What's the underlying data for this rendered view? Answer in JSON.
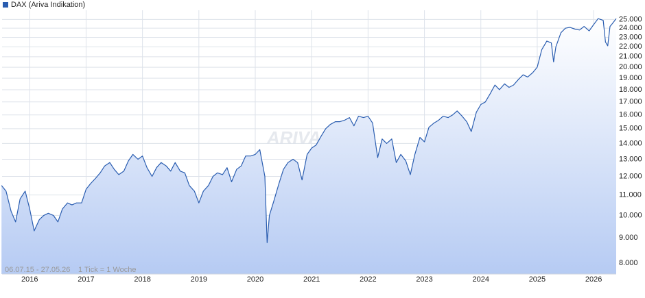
{
  "chart_data": {
    "type": "line",
    "log_scale": true,
    "grid": true,
    "watermark": "ARIVA.DE",
    "date_range": "06.07.15 - 27.05.26",
    "tick_note": "1 Tick = 1 Woche",
    "x": [
      2015.5,
      2015.58,
      2015.67,
      2015.75,
      2015.83,
      2015.92,
      2016.0,
      2016.08,
      2016.17,
      2016.25,
      2016.33,
      2016.42,
      2016.5,
      2016.58,
      2016.67,
      2016.75,
      2016.83,
      2016.92,
      2017.0,
      2017.08,
      2017.17,
      2017.25,
      2017.33,
      2017.42,
      2017.5,
      2017.58,
      2017.67,
      2017.75,
      2017.83,
      2017.92,
      2018.0,
      2018.08,
      2018.17,
      2018.25,
      2018.33,
      2018.42,
      2018.5,
      2018.58,
      2018.67,
      2018.75,
      2018.83,
      2018.92,
      2019.0,
      2019.08,
      2019.17,
      2019.25,
      2019.33,
      2019.42,
      2019.5,
      2019.58,
      2019.67,
      2019.75,
      2019.83,
      2019.92,
      2020.0,
      2020.08,
      2020.17,
      2020.21,
      2020.25,
      2020.33,
      2020.42,
      2020.5,
      2020.58,
      2020.67,
      2020.75,
      2020.83,
      2020.92,
      2021.0,
      2021.08,
      2021.17,
      2021.25,
      2021.33,
      2021.42,
      2021.5,
      2021.58,
      2021.67,
      2021.75,
      2021.83,
      2021.92,
      2022.0,
      2022.08,
      2022.17,
      2022.25,
      2022.33,
      2022.42,
      2022.5,
      2022.58,
      2022.67,
      2022.75,
      2022.83,
      2022.92,
      2023.0,
      2023.08,
      2023.17,
      2023.25,
      2023.33,
      2023.42,
      2023.5,
      2023.58,
      2023.67,
      2023.75,
      2023.83,
      2023.92,
      2024.0,
      2024.08,
      2024.17,
      2024.25,
      2024.33,
      2024.42,
      2024.5,
      2024.58,
      2024.67,
      2024.75,
      2024.83,
      2024.92,
      2025.0,
      2025.08,
      2025.17,
      2025.25,
      2025.29,
      2025.33,
      2025.42,
      2025.5,
      2025.58,
      2025.67,
      2025.75,
      2025.83,
      2025.92,
      2026.0,
      2026.08,
      2026.17,
      2026.21,
      2026.25,
      2026.29,
      2026.33,
      2026.4
    ],
    "series": [
      {
        "name": "DAX (Ariva Indikation)",
        "color": "#2a5db0",
        "values": [
          11500,
          11200,
          10200,
          9700,
          10800,
          11200,
          10300,
          9300,
          9800,
          10000,
          10100,
          10000,
          9700,
          10300,
          10600,
          10500,
          10600,
          10600,
          11300,
          11600,
          11900,
          12200,
          12600,
          12800,
          12400,
          12100,
          12300,
          12900,
          13300,
          13000,
          13200,
          12500,
          12000,
          12500,
          12800,
          12600,
          12300,
          12800,
          12300,
          12200,
          11500,
          11200,
          10600,
          11200,
          11500,
          12000,
          12200,
          12100,
          12500,
          11700,
          12400,
          12600,
          13200,
          13200,
          13300,
          13600,
          12000,
          8800,
          10000,
          10700,
          11600,
          12400,
          12800,
          13000,
          12800,
          11800,
          13300,
          13700,
          13900,
          14500,
          15000,
          15300,
          15500,
          15500,
          15600,
          15800,
          15200,
          15900,
          15800,
          15900,
          15400,
          13100,
          14300,
          14000,
          14300,
          12800,
          13300,
          12900,
          12100,
          13300,
          14400,
          14100,
          15100,
          15400,
          15600,
          15900,
          15800,
          16000,
          16300,
          15900,
          15500,
          14800,
          16200,
          16800,
          17000,
          17700,
          18400,
          18000,
          18500,
          18200,
          18400,
          18900,
          19300,
          19100,
          19500,
          20000,
          21700,
          22600,
          22400,
          20500,
          22000,
          23500,
          24000,
          24100,
          23900,
          23800,
          24200,
          23700,
          24400,
          25100,
          24900,
          22500,
          22100,
          24200,
          24500,
          25100
        ]
      }
    ],
    "xlim": [
      2015.51,
      2026.4
    ],
    "xticks": [
      2016,
      2017,
      2018,
      2019,
      2020,
      2021,
      2022,
      2023,
      2024,
      2025,
      2026
    ],
    "ylim": [
      7600,
      26100
    ],
    "yticks": [
      {
        "value": 8000,
        "label": "8.000"
      },
      {
        "value": 9000,
        "label": "9.000"
      },
      {
        "value": 10000,
        "label": "10.000"
      },
      {
        "value": 11000,
        "label": "11.000"
      },
      {
        "value": 12000,
        "label": "12.000"
      },
      {
        "value": 13000,
        "label": "13.000"
      },
      {
        "value": 14000,
        "label": "14.000"
      },
      {
        "value": 15000,
        "label": "15.000"
      },
      {
        "value": 16000,
        "label": "16.000"
      },
      {
        "value": 17000,
        "label": "17.000"
      },
      {
        "value": 18000,
        "label": "18.000"
      },
      {
        "value": 19000,
        "label": "19.000"
      },
      {
        "value": 20000,
        "label": "20.000"
      },
      {
        "value": 21000,
        "label": "21.000"
      },
      {
        "value": 22000,
        "label": "22.000"
      },
      {
        "value": 23000,
        "label": "23.000"
      },
      {
        "value": 24000,
        "label": "24.000"
      },
      {
        "value": 25000,
        "label": "25.000"
      }
    ]
  }
}
